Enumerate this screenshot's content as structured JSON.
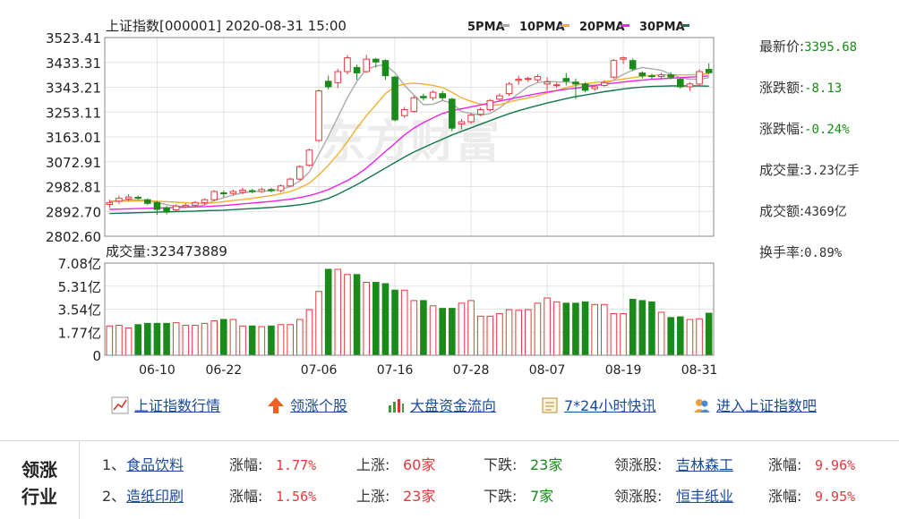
{
  "chart_data": [
    {
      "type": "candlestick",
      "title": "上证指数[000001] 2020-08-31 15:00",
      "legend": [
        {
          "name": "5PMA",
          "color": "#aaaaaa"
        },
        {
          "name": "10PMA",
          "color": "#f0b030"
        },
        {
          "name": "20PMA",
          "color": "#ee22ee"
        },
        {
          "name": "30PMA",
          "color": "#11774a"
        }
      ],
      "y_ticks": [
        "3523.41",
        "3433.31",
        "3343.21",
        "3253.11",
        "3163.01",
        "3072.91",
        "2982.81",
        "2892.70",
        "2802.60"
      ],
      "ylim": [
        2802.6,
        3523.41
      ],
      "x_ticks": [
        {
          "label": "06-10",
          "index": 5
        },
        {
          "label": "06-22",
          "index": 12
        },
        {
          "label": "07-06",
          "index": 22
        },
        {
          "label": "07-16",
          "index": 30
        },
        {
          "label": "07-28",
          "index": 38
        },
        {
          "label": "08-07",
          "index": 46
        },
        {
          "label": "08-19",
          "index": 54
        },
        {
          "label": "08-31",
          "index": 62
        }
      ],
      "candles": [
        {
          "o": 2918,
          "c": 2925,
          "h": 2935,
          "l": 2905
        },
        {
          "o": 2930,
          "c": 2940,
          "h": 2950,
          "l": 2920
        },
        {
          "o": 2938,
          "c": 2945,
          "h": 2955,
          "l": 2930
        },
        {
          "o": 2944,
          "c": 2941,
          "h": 2950,
          "l": 2935
        },
        {
          "o": 2935,
          "c": 2922,
          "h": 2940,
          "l": 2915
        },
        {
          "o": 2925,
          "c": 2900,
          "h": 2930,
          "l": 2880
        },
        {
          "o": 2905,
          "c": 2890,
          "h": 2912,
          "l": 2882
        },
        {
          "o": 2898,
          "c": 2912,
          "h": 2918,
          "l": 2892
        },
        {
          "o": 2910,
          "c": 2915,
          "h": 2922,
          "l": 2905
        },
        {
          "o": 2915,
          "c": 2925,
          "h": 2930,
          "l": 2910
        },
        {
          "o": 2925,
          "c": 2935,
          "h": 2940,
          "l": 2918
        },
        {
          "o": 2935,
          "c": 2965,
          "h": 2970,
          "l": 2930
        },
        {
          "o": 2960,
          "c": 2958,
          "h": 2968,
          "l": 2945
        },
        {
          "o": 2958,
          "c": 2965,
          "h": 2972,
          "l": 2950
        },
        {
          "o": 2962,
          "c": 2970,
          "h": 2978,
          "l": 2955
        },
        {
          "o": 2968,
          "c": 2965,
          "h": 2975,
          "l": 2958
        },
        {
          "o": 2965,
          "c": 2972,
          "h": 2980,
          "l": 2960
        },
        {
          "o": 2972,
          "c": 2968,
          "h": 2978,
          "l": 2962
        },
        {
          "o": 2968,
          "c": 2985,
          "h": 2990,
          "l": 2962
        },
        {
          "o": 2985,
          "c": 3010,
          "h": 3015,
          "l": 2980
        },
        {
          "o": 3010,
          "c": 3055,
          "h": 3060,
          "l": 3005
        },
        {
          "o": 3060,
          "c": 3115,
          "h": 3120,
          "l": 3055
        },
        {
          "o": 3150,
          "c": 3330,
          "h": 3335,
          "l": 3145
        },
        {
          "o": 3365,
          "c": 3345,
          "h": 3385,
          "l": 3335
        },
        {
          "o": 3360,
          "c": 3400,
          "h": 3410,
          "l": 3340
        },
        {
          "o": 3400,
          "c": 3450,
          "h": 3460,
          "l": 3390
        },
        {
          "o": 3415,
          "c": 3395,
          "h": 3425,
          "l": 3370
        },
        {
          "o": 3400,
          "c": 3445,
          "h": 3460,
          "l": 3395
        },
        {
          "o": 3445,
          "c": 3435,
          "h": 3450,
          "l": 3415
        },
        {
          "o": 3440,
          "c": 3385,
          "h": 3445,
          "l": 3370
        },
        {
          "o": 3380,
          "c": 3225,
          "h": 3385,
          "l": 3220
        },
        {
          "o": 3240,
          "c": 3262,
          "h": 3272,
          "l": 3232
        },
        {
          "o": 3255,
          "c": 3305,
          "h": 3312,
          "l": 3250
        },
        {
          "o": 3310,
          "c": 3305,
          "h": 3320,
          "l": 3295
        },
        {
          "o": 3305,
          "c": 3325,
          "h": 3332,
          "l": 3295
        },
        {
          "o": 3320,
          "c": 3305,
          "h": 3330,
          "l": 3295
        },
        {
          "o": 3300,
          "c": 3195,
          "h": 3305,
          "l": 3185
        },
        {
          "o": 3210,
          "c": 3218,
          "h": 3228,
          "l": 3190
        },
        {
          "o": 3218,
          "c": 3242,
          "h": 3250,
          "l": 3210
        },
        {
          "o": 3245,
          "c": 3262,
          "h": 3270,
          "l": 3238
        },
        {
          "o": 3262,
          "c": 3295,
          "h": 3300,
          "l": 3255
        },
        {
          "o": 3300,
          "c": 3312,
          "h": 3320,
          "l": 3290
        },
        {
          "o": 3320,
          "c": 3355,
          "h": 3362,
          "l": 3312
        },
        {
          "o": 3368,
          "c": 3372,
          "h": 3385,
          "l": 3352
        },
        {
          "o": 3372,
          "c": 3375,
          "h": 3382,
          "l": 3362
        },
        {
          "o": 3370,
          "c": 3382,
          "h": 3390,
          "l": 3362
        },
        {
          "o": 3355,
          "c": 3362,
          "h": 3380,
          "l": 3330
        },
        {
          "o": 3350,
          "c": 3352,
          "h": 3360,
          "l": 3340
        },
        {
          "o": 3375,
          "c": 3366,
          "h": 3395,
          "l": 3350
        },
        {
          "o": 3362,
          "c": 3355,
          "h": 3375,
          "l": 3300
        },
        {
          "o": 3355,
          "c": 3332,
          "h": 3362,
          "l": 3325
        },
        {
          "o": 3338,
          "c": 3345,
          "h": 3350,
          "l": 3330
        },
        {
          "o": 3350,
          "c": 3360,
          "h": 3368,
          "l": 3345
        },
        {
          "o": 3380,
          "c": 3440,
          "h": 3445,
          "l": 3375
        },
        {
          "o": 3445,
          "c": 3450,
          "h": 3455,
          "l": 3428
        },
        {
          "o": 3440,
          "c": 3410,
          "h": 3448,
          "l": 3402
        },
        {
          "o": 3395,
          "c": 3385,
          "h": 3402,
          "l": 3375
        },
        {
          "o": 3385,
          "c": 3382,
          "h": 3392,
          "l": 3372
        },
        {
          "o": 3382,
          "c": 3388,
          "h": 3395,
          "l": 3375
        },
        {
          "o": 3388,
          "c": 3380,
          "h": 3398,
          "l": 3372
        },
        {
          "o": 3372,
          "c": 3345,
          "h": 3378,
          "l": 3338
        },
        {
          "o": 3345,
          "c": 3355,
          "h": 3362,
          "l": 3330
        },
        {
          "o": 3355,
          "c": 3400,
          "h": 3408,
          "l": 3350
        },
        {
          "o": 3408,
          "c": 3396,
          "h": 3430,
          "l": 3390
        }
      ],
      "ma5": [
        2930,
        2932,
        2934,
        2935,
        2933,
        2925,
        2917,
        2912,
        2910,
        2910,
        2916,
        2932,
        2943,
        2952,
        2960,
        2965,
        2966,
        2968,
        2972,
        2983,
        3003,
        3035,
        3100,
        3165,
        3235,
        3305,
        3365,
        3408,
        3420,
        3425,
        3395,
        3350,
        3315,
        3280,
        3282,
        3295,
        3285,
        3255,
        3248,
        3242,
        3248,
        3268,
        3295,
        3320,
        3345,
        3360,
        3365,
        3363,
        3362,
        3360,
        3352,
        3350,
        3353,
        3370,
        3390,
        3405,
        3415,
        3410,
        3405,
        3390,
        3378,
        3372,
        3372,
        3378
      ],
      "ma10": [
        2928,
        2929,
        2930,
        2931,
        2931,
        2930,
        2928,
        2926,
        2924,
        2922,
        2921,
        2924,
        2928,
        2932,
        2936,
        2940,
        2945,
        2950,
        2957,
        2965,
        2978,
        2995,
        3025,
        3060,
        3100,
        3145,
        3195,
        3240,
        3280,
        3320,
        3345,
        3355,
        3358,
        3355,
        3350,
        3342,
        3325,
        3305,
        3292,
        3282,
        3278,
        3280,
        3290,
        3298,
        3305,
        3312,
        3322,
        3332,
        3342,
        3350,
        3356,
        3360,
        3364,
        3368,
        3373,
        3378,
        3383,
        3386,
        3388,
        3388,
        3388,
        3388,
        3390,
        3392
      ],
      "ma20": [
        2900,
        2901,
        2902,
        2903,
        2904,
        2905,
        2906,
        2907,
        2908,
        2909,
        2910,
        2912,
        2914,
        2917,
        2920,
        2923,
        2926,
        2929,
        2933,
        2937,
        2943,
        2950,
        2960,
        2972,
        2988,
        3005,
        3025,
        3050,
        3080,
        3110,
        3140,
        3170,
        3195,
        3215,
        3232,
        3248,
        3258,
        3265,
        3272,
        3279,
        3286,
        3293,
        3300,
        3307,
        3314,
        3320,
        3326,
        3331,
        3336,
        3340,
        3345,
        3350,
        3354,
        3358,
        3362,
        3366,
        3369,
        3372,
        3374,
        3376,
        3378,
        3380,
        3382,
        3384
      ],
      "ma30": [
        2885,
        2886,
        2887,
        2888,
        2889,
        2890,
        2891,
        2892,
        2893,
        2894,
        2895,
        2896,
        2897,
        2899,
        2901,
        2903,
        2905,
        2907,
        2910,
        2913,
        2917,
        2922,
        2930,
        2940,
        2955,
        2972,
        2990,
        3010,
        3030,
        3050,
        3070,
        3090,
        3108,
        3124,
        3140,
        3155,
        3170,
        3183,
        3196,
        3209,
        3222,
        3235,
        3247,
        3258,
        3268,
        3277,
        3286,
        3294,
        3302,
        3309,
        3315,
        3321,
        3327,
        3332,
        3337,
        3341,
        3344,
        3346,
        3347,
        3348,
        3348,
        3348,
        3348,
        3347
      ]
    },
    {
      "type": "bar",
      "title": "成交量:323473889",
      "y_ticks": [
        "7.08亿",
        "5.31亿",
        "3.54亿",
        "1.77亿",
        "0"
      ],
      "ylim": [
        0,
        7.08
      ],
      "unit": "亿",
      "values": [
        2.25,
        2.3,
        2.1,
        2.35,
        2.45,
        2.45,
        2.45,
        2.5,
        2.3,
        2.3,
        2.45,
        2.65,
        2.75,
        2.75,
        2.25,
        2.25,
        2.2,
        2.25,
        2.35,
        2.35,
        2.75,
        3.5,
        4.9,
        6.6,
        6.6,
        6.2,
        6.2,
        5.6,
        5.6,
        5.5,
        5.0,
        5.0,
        4.2,
        4.2,
        3.8,
        3.6,
        3.6,
        4.0,
        4.2,
        3.0,
        3.0,
        3.2,
        3.5,
        3.45,
        3.5,
        4.0,
        4.4,
        4.1,
        4.0,
        4.0,
        4.1,
        3.9,
        3.9,
        3.2,
        3.2,
        4.3,
        4.2,
        4.1,
        3.3,
        2.9,
        2.95,
        2.75,
        2.8,
        3.23
      ]
    }
  ],
  "stats": [
    {
      "label": "最新价:",
      "value": "3395.68",
      "tone": "green"
    },
    {
      "label": "涨跌额:",
      "value": "-8.13",
      "tone": "green"
    },
    {
      "label": "涨跌幅:",
      "value": "-0.24%",
      "tone": "green"
    },
    {
      "label": "成交量:",
      "value": "3.23亿手",
      "tone": "dark"
    },
    {
      "label": "成交额:",
      "value": "4369亿",
      "tone": "dark"
    },
    {
      "label": "换手率:",
      "value": "0.89%",
      "tone": "dark"
    }
  ],
  "links": [
    {
      "label": "上证指数行情",
      "icon": "line-chart-icon"
    },
    {
      "label": "领涨个股",
      "icon": "up-arrow-icon"
    },
    {
      "label": "大盘资金流向",
      "icon": "bar-chart-icon"
    },
    {
      "label": "7*24小时快讯",
      "icon": "calendar-icon"
    },
    {
      "label": "进入上证指数吧",
      "icon": "users-icon"
    }
  ],
  "industry": {
    "header_line1": "领涨",
    "header_line2": "行业",
    "rows": [
      {
        "rank": "1、",
        "name": "食品饮料",
        "change_label": "涨幅:",
        "change": "1.77%",
        "up_label": "上涨:",
        "up": "60家",
        "down_label": "下跌:",
        "down": "23家",
        "leader_label": "领涨股:",
        "leader": "吉林森工",
        "leader_change_label": "涨幅:",
        "leader_change": "9.96%"
      },
      {
        "rank": "2、",
        "name": "造纸印刷",
        "change_label": "涨幅:",
        "change": "1.56%",
        "up_label": "上涨:",
        "up": "23家",
        "down_label": "下跌:",
        "down": "7家",
        "leader_label": "领涨股:",
        "leader": "恒丰纸业",
        "leader_change_label": "涨幅:",
        "leader_change": "9.95%"
      }
    ]
  },
  "colors": {
    "up": "#e4393c",
    "down": "#1a8a1a",
    "grid": "#e2e2e2",
    "axis": "#555555",
    "watermark": "#ececec"
  },
  "watermark": "东方财富"
}
